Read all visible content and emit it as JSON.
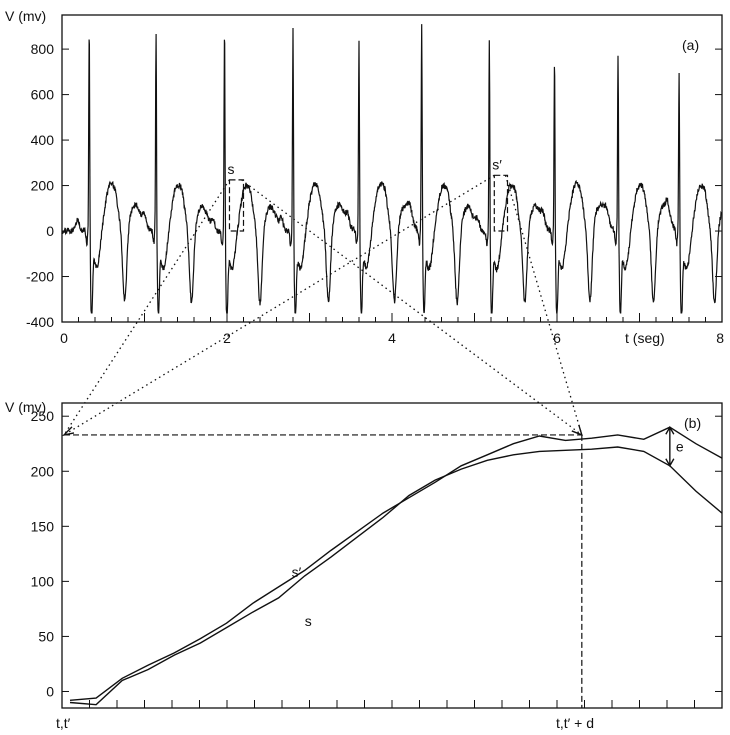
{
  "chart_data": [
    {
      "type": "line",
      "panel_label": "(a)",
      "ylabel": "V (mv)",
      "xlabel": "t  (seg)",
      "xlim": [
        0,
        8
      ],
      "ylim": [
        -400,
        950
      ],
      "x_ticks": [
        0,
        2,
        4,
        6,
        8
      ],
      "y_ticks": [
        -400,
        -200,
        0,
        200,
        400,
        600,
        800
      ],
      "beat_times": [
        0.33,
        1.14,
        1.97,
        2.8,
        3.6,
        4.36,
        5.18,
        5.97,
        6.74,
        7.48
      ],
      "r_peaks": [
        880,
        850,
        880,
        880,
        820,
        910,
        830,
        740,
        760,
        700
      ],
      "s_min": [
        -330,
        -310,
        -320,
        -320,
        -310,
        -300,
        -320,
        -310,
        -310,
        -320
      ],
      "t_peaks": [
        235,
        240,
        240,
        235,
        240,
        240,
        240,
        235,
        235,
        240
      ],
      "segment_s": {
        "label": "s",
        "t_start": 2.03,
        "t_end": 2.2,
        "v_min": 0,
        "v_max": 225
      },
      "segment_s_prime": {
        "label": "s′",
        "t_start": 5.24,
        "t_end": 5.4,
        "v_min": 0,
        "v_max": 245
      }
    },
    {
      "type": "line",
      "panel_label": "(b)",
      "ylabel": "V (mv)",
      "ylim": [
        -15,
        262
      ],
      "y_ticks": [
        0,
        50,
        100,
        150,
        200,
        250
      ],
      "x_tick_labels": [
        "t,t′",
        "t,t′ + d"
      ],
      "x_tick_count": 24,
      "ref_level": 233,
      "error_label": "e",
      "series": [
        {
          "name": "s′",
          "x": [
            0,
            0.04,
            0.08,
            0.12,
            0.16,
            0.2,
            0.24,
            0.28,
            0.32,
            0.36,
            0.4,
            0.44,
            0.48,
            0.52,
            0.56,
            0.6,
            0.64,
            0.68,
            0.72,
            0.76,
            0.8,
            0.84,
            0.88,
            0.92,
            0.96,
            1.0
          ],
          "y": [
            -8,
            -6,
            12,
            24,
            35,
            48,
            62,
            80,
            95,
            110,
            128,
            145,
            162,
            176,
            190,
            205,
            215,
            225,
            232,
            228,
            230,
            233,
            229,
            240,
            225,
            212
          ]
        },
        {
          "name": "s",
          "x": [
            0,
            0.04,
            0.08,
            0.12,
            0.16,
            0.2,
            0.24,
            0.28,
            0.32,
            0.36,
            0.4,
            0.44,
            0.48,
            0.52,
            0.56,
            0.6,
            0.64,
            0.68,
            0.72,
            0.76,
            0.8,
            0.84,
            0.88,
            0.92,
            0.96,
            1.0
          ],
          "y": [
            -10,
            -12,
            10,
            20,
            33,
            44,
            58,
            72,
            85,
            105,
            122,
            140,
            158,
            178,
            192,
            202,
            210,
            215,
            218,
            219,
            220,
            222,
            218,
            205,
            182,
            162
          ]
        }
      ]
    }
  ]
}
